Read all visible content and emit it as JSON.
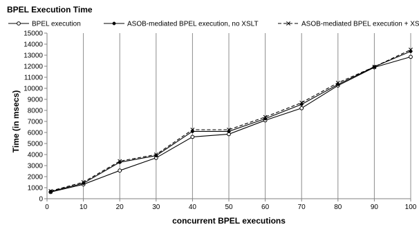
{
  "chart_data": {
    "type": "line",
    "title": "BPEL Execution Time",
    "xlabel": "concurrent BPEL executions",
    "ylabel": "Time (in msecs)",
    "xlim": [
      0,
      100
    ],
    "ylim": [
      0,
      15000
    ],
    "x_ticks": [
      0,
      10,
      20,
      30,
      40,
      50,
      60,
      70,
      80,
      90,
      100
    ],
    "y_ticks": [
      0,
      1000,
      2000,
      3000,
      4000,
      5000,
      6000,
      7000,
      8000,
      9000,
      10000,
      11000,
      12000,
      13000,
      14000,
      15000
    ],
    "grid": "vertical",
    "legend_position": "top",
    "x": [
      1,
      10,
      20,
      30,
      40,
      50,
      60,
      70,
      80,
      90,
      100
    ],
    "series": [
      {
        "name": "BPEL execution",
        "marker": "circle",
        "dash": "solid",
        "color": "#000000",
        "values": [
          600,
          1300,
          2550,
          3700,
          5600,
          5850,
          7100,
          8200,
          10250,
          11900,
          12850
        ]
      },
      {
        "name": "ASOB-mediated BPEL execution, no XSLT",
        "marker": "dot",
        "dash": "solid",
        "color": "#000000",
        "values": [
          650,
          1400,
          3300,
          3900,
          6100,
          6100,
          7250,
          8550,
          10350,
          11950,
          13350
        ]
      },
      {
        "name": "ASOB-mediated BPEL execution + XSLT",
        "marker": "x",
        "dash": "dashed",
        "color": "#000000",
        "values": [
          700,
          1500,
          3400,
          4000,
          6250,
          6250,
          7400,
          8700,
          10500,
          11950,
          13500
        ]
      }
    ]
  }
}
